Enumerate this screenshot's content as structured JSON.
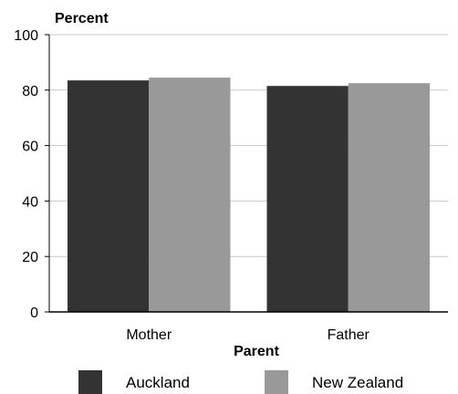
{
  "chart_data": {
    "type": "bar",
    "title": "",
    "ylabel": "Percent",
    "xlabel": "Parent",
    "categories": [
      "Mother",
      "Father"
    ],
    "series": [
      {
        "name": "Auckland",
        "values": [
          83.5,
          81.5
        ],
        "color": "#333333"
      },
      {
        "name": "New Zealand",
        "values": [
          84.5,
          82.5
        ],
        "color": "#999999"
      }
    ],
    "ylim": [
      0,
      100
    ],
    "yticks": [
      "0",
      "20",
      "40",
      "60",
      "80",
      "100"
    ],
    "grid": true,
    "legend_position": "bottom"
  }
}
